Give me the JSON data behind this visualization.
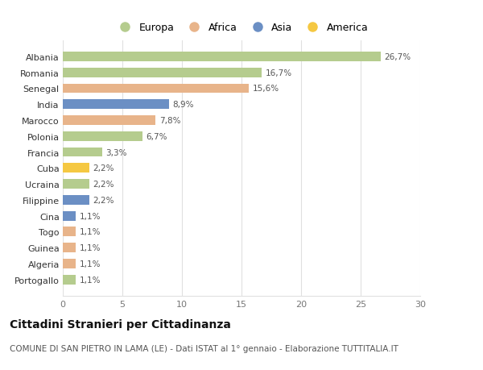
{
  "countries": [
    "Albania",
    "Romania",
    "Senegal",
    "India",
    "Marocco",
    "Polonia",
    "Francia",
    "Cuba",
    "Ucraina",
    "Filippine",
    "Cina",
    "Togo",
    "Guinea",
    "Algeria",
    "Portogallo"
  ],
  "values": [
    26.7,
    16.7,
    15.6,
    8.9,
    7.8,
    6.7,
    3.3,
    2.2,
    2.2,
    2.2,
    1.1,
    1.1,
    1.1,
    1.1,
    1.1
  ],
  "labels": [
    "26,7%",
    "16,7%",
    "15,6%",
    "8,9%",
    "7,8%",
    "6,7%",
    "3,3%",
    "2,2%",
    "2,2%",
    "2,2%",
    "1,1%",
    "1,1%",
    "1,1%",
    "1,1%",
    "1,1%"
  ],
  "regions": [
    "Europa",
    "Europa",
    "Africa",
    "Asia",
    "Africa",
    "Europa",
    "Europa",
    "America",
    "Europa",
    "Asia",
    "Asia",
    "Africa",
    "Africa",
    "Africa",
    "Europa"
  ],
  "region_colors": {
    "Europa": "#b5cc8e",
    "Africa": "#e8b48a",
    "Asia": "#6b8fc4",
    "America": "#f5c842"
  },
  "legend_order": [
    "Europa",
    "Africa",
    "Asia",
    "America"
  ],
  "title": "Cittadini Stranieri per Cittadinanza",
  "subtitle": "COMUNE DI SAN PIETRO IN LAMA (LE) - Dati ISTAT al 1° gennaio - Elaborazione TUTTITALIA.IT",
  "xlabel_ticks": [
    0,
    5,
    10,
    15,
    20,
    25,
    30
  ],
  "xlim": [
    0,
    30
  ],
  "background_color": "#ffffff",
  "bar_height": 0.6,
  "grid_color": "#e0e0e0",
  "label_fontsize": 7.5,
  "tick_fontsize": 8,
  "title_fontsize": 10,
  "subtitle_fontsize": 7.5,
  "legend_fontsize": 9
}
